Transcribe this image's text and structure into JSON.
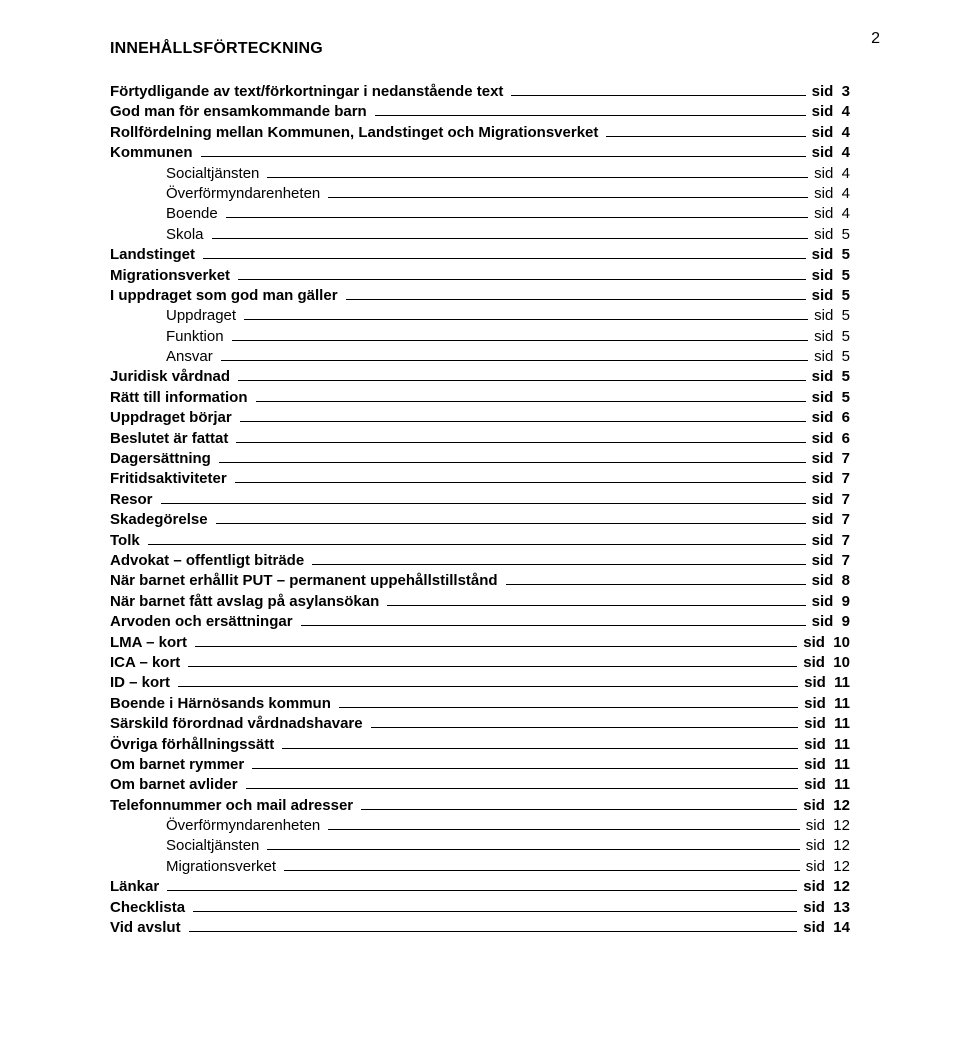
{
  "page_number": "2",
  "title": "INNEHÅLLSFÖRTECKNING",
  "page_prefix": "sid",
  "entries": [
    {
      "label": "Förtydligande av text/förkortningar i nedanstående text",
      "page": "3",
      "bold": true,
      "indent": 0
    },
    {
      "label": "God man för ensamkommande barn",
      "page": "4",
      "bold": true,
      "indent": 0
    },
    {
      "label": "Rollfördelning mellan Kommunen, Landstinget och Migrationsverket",
      "page": "4",
      "bold": true,
      "indent": 0
    },
    {
      "label": "Kommunen",
      "page": "4",
      "bold": true,
      "indent": 0
    },
    {
      "label": "Socialtjänsten",
      "page": "4",
      "bold": false,
      "indent": 1
    },
    {
      "label": "Överförmyndarenheten",
      "page": "4",
      "bold": false,
      "indent": 1
    },
    {
      "label": "Boende",
      "page": "4",
      "bold": false,
      "indent": 1
    },
    {
      "label": "Skola",
      "page": "5",
      "bold": false,
      "indent": 1
    },
    {
      "label": "Landstinget",
      "page": "5",
      "bold": true,
      "indent": 0
    },
    {
      "label": "Migrationsverket",
      "page": "5",
      "bold": true,
      "indent": 0
    },
    {
      "label": "I uppdraget som god man gäller",
      "page": "5",
      "bold": true,
      "indent": 0
    },
    {
      "label": "Uppdraget",
      "page": "5",
      "bold": false,
      "indent": 1
    },
    {
      "label": "Funktion",
      "page": "5",
      "bold": false,
      "indent": 1
    },
    {
      "label": "Ansvar",
      "page": "5",
      "bold": false,
      "indent": 1
    },
    {
      "label": "Juridisk vårdnad",
      "page": "5",
      "bold": true,
      "indent": 0
    },
    {
      "label": "Rätt till information",
      "page": "5",
      "bold": true,
      "indent": 0
    },
    {
      "label": "Uppdraget börjar",
      "page": "6",
      "bold": true,
      "indent": 0
    },
    {
      "label": "Beslutet är fattat",
      "page": "6",
      "bold": true,
      "indent": 0
    },
    {
      "label": "Dagersättning",
      "page": "7",
      "bold": true,
      "indent": 0
    },
    {
      "label": "Fritidsaktiviteter",
      "page": "7",
      "bold": true,
      "indent": 0
    },
    {
      "label": "Resor",
      "page": "7",
      "bold": true,
      "indent": 0
    },
    {
      "label": "Skadegörelse",
      "page": "7",
      "bold": true,
      "indent": 0
    },
    {
      "label": "Tolk",
      "page": "7",
      "bold": true,
      "indent": 0
    },
    {
      "label": "Advokat – offentligt biträde",
      "page": "7",
      "bold": true,
      "indent": 0
    },
    {
      "label": "När barnet erhållit PUT – permanent uppehållstillstånd",
      "page": "8",
      "bold": true,
      "indent": 0
    },
    {
      "label": "När barnet fått avslag på asylansökan",
      "page": "9",
      "bold": true,
      "indent": 0
    },
    {
      "label": "Arvoden och ersättningar",
      "page": "9",
      "bold": true,
      "indent": 0
    },
    {
      "label": "LMA – kort",
      "page": "10",
      "bold": true,
      "indent": 0
    },
    {
      "label": "ICA – kort",
      "page": "10",
      "bold": true,
      "indent": 0
    },
    {
      "label": "ID – kort",
      "page": "11",
      "bold": true,
      "indent": 0
    },
    {
      "label": "Boende i Härnösands kommun",
      "page": "11",
      "bold": true,
      "indent": 0
    },
    {
      "label": "Särskild förordnad vårdnadshavare",
      "page": "11",
      "bold": true,
      "indent": 0
    },
    {
      "label": "Övriga förhållningssätt",
      "page": "11",
      "bold": true,
      "indent": 0
    },
    {
      "label": "Om barnet rymmer",
      "page": "11",
      "bold": true,
      "indent": 0
    },
    {
      "label": "Om barnet avlider",
      "page": "11",
      "bold": true,
      "indent": 0
    },
    {
      "label": "Telefonnummer och mail adresser",
      "page": "12",
      "bold": true,
      "indent": 0
    },
    {
      "label": "Överförmyndarenheten",
      "page": "12",
      "bold": false,
      "indent": 1
    },
    {
      "label": "Socialtjänsten",
      "page": "12",
      "bold": false,
      "indent": 1
    },
    {
      "label": "Migrationsverket",
      "page": "12",
      "bold": false,
      "indent": 1
    },
    {
      "label": "Länkar",
      "page": "12",
      "bold": true,
      "indent": 0
    },
    {
      "label": "Checklista",
      "page": "13",
      "bold": true,
      "indent": 0
    },
    {
      "label": "Vid avslut",
      "page": "14",
      "bold": true,
      "indent": 0
    }
  ]
}
